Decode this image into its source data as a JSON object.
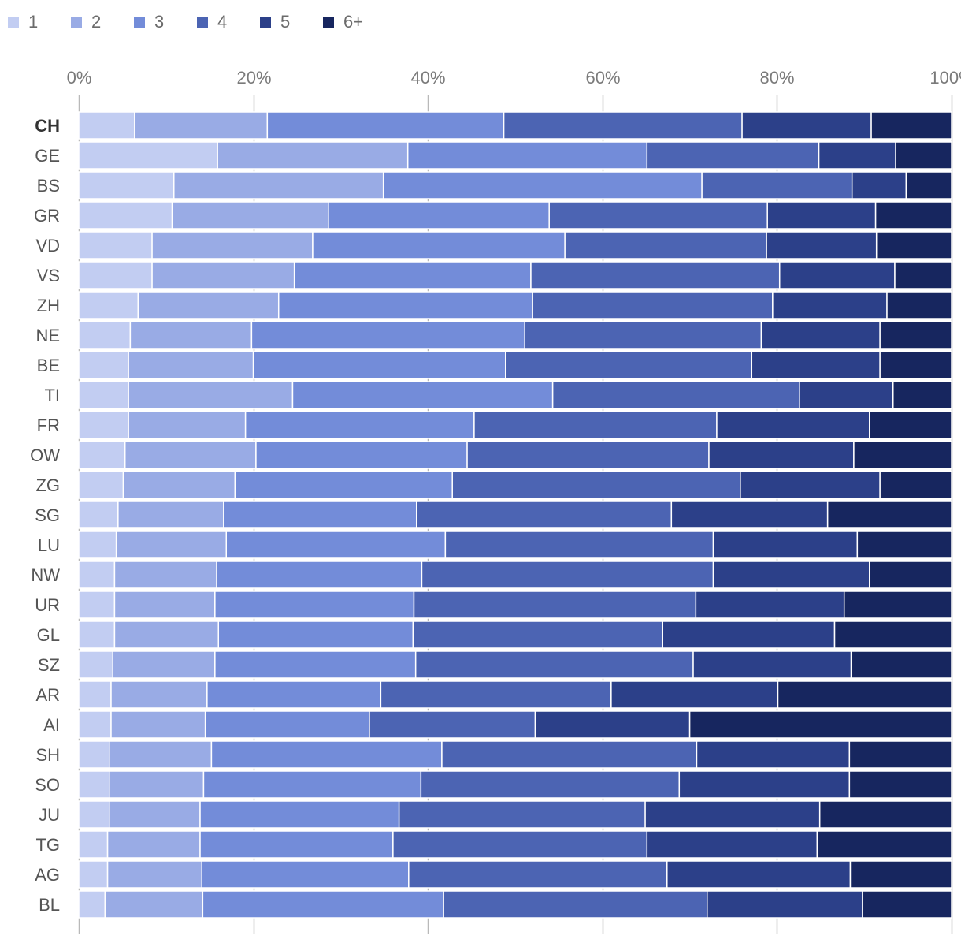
{
  "chart_data": {
    "type": "bar",
    "orientation": "horizontal",
    "stacked": true,
    "normalized_percent": true,
    "title": "",
    "xlabel": "",
    "ylabel": "",
    "xlim": [
      0,
      100
    ],
    "x_ticks": [
      "0%",
      "20%",
      "40%",
      "60%",
      "80%",
      "100%"
    ],
    "legend_position": "top-left",
    "highlight_category": "CH",
    "categories": [
      "CH",
      "GE",
      "BS",
      "GR",
      "VD",
      "VS",
      "ZH",
      "NE",
      "BE",
      "TI",
      "FR",
      "OW",
      "ZG",
      "SG",
      "LU",
      "NW",
      "UR",
      "GL",
      "SZ",
      "AR",
      "AI",
      "SH",
      "SO",
      "JU",
      "TG",
      "AG",
      "BL"
    ],
    "series": [
      {
        "name": "1",
        "color": "#c2cdf2",
        "values": [
          6.4,
          15.9,
          10.9,
          10.7,
          8.4,
          8.4,
          6.8,
          5.9,
          5.7,
          5.7,
          5.7,
          5.3,
          5.1,
          4.5,
          4.3,
          4.1,
          4.1,
          4.1,
          3.9,
          3.7,
          3.7,
          3.5,
          3.5,
          3.5,
          3.3,
          3.3,
          3.0
        ]
      },
      {
        "name": "2",
        "color": "#99abe5",
        "values": [
          15.2,
          21.8,
          24.0,
          17.9,
          18.4,
          16.3,
          16.1,
          13.9,
          14.3,
          18.8,
          13.4,
          15.0,
          12.8,
          12.1,
          12.6,
          11.7,
          11.5,
          11.9,
          11.7,
          11.0,
          10.8,
          11.7,
          10.8,
          10.4,
          10.6,
          10.8,
          11.2
        ]
      },
      {
        "name": "3",
        "color": "#738cd9",
        "values": [
          27.1,
          27.4,
          36.5,
          25.3,
          28.9,
          27.1,
          29.1,
          31.3,
          28.9,
          29.8,
          26.2,
          24.2,
          24.9,
          22.1,
          25.1,
          23.5,
          22.8,
          22.3,
          23.0,
          19.9,
          18.8,
          26.4,
          24.9,
          22.8,
          22.1,
          23.7,
          27.6
        ]
      },
      {
        "name": "4",
        "color": "#4c64b3",
        "values": [
          27.3,
          19.7,
          17.2,
          25.0,
          23.1,
          28.5,
          27.5,
          27.1,
          28.2,
          28.3,
          27.8,
          27.7,
          33.0,
          29.2,
          30.7,
          33.4,
          32.3,
          28.6,
          31.8,
          26.4,
          19.0,
          29.2,
          29.6,
          28.2,
          29.1,
          29.6,
          30.2
        ]
      },
      {
        "name": "5",
        "color": "#2c4089",
        "values": [
          14.8,
          8.8,
          6.2,
          12.4,
          12.6,
          13.2,
          13.1,
          13.6,
          14.7,
          10.7,
          17.5,
          16.6,
          16.0,
          17.9,
          16.5,
          17.9,
          17.0,
          19.7,
          18.1,
          19.1,
          17.7,
          17.5,
          19.5,
          20.0,
          19.5,
          21.0,
          17.8
        ]
      },
      {
        "name": "6+",
        "color": "#17265f",
        "values": [
          9.2,
          6.4,
          5.2,
          8.7,
          8.6,
          6.5,
          7.4,
          8.2,
          8.2,
          6.7,
          9.4,
          11.2,
          8.2,
          14.2,
          10.8,
          9.4,
          12.3,
          13.4,
          11.5,
          19.9,
          30.0,
          11.7,
          11.7,
          15.1,
          15.4,
          11.6,
          10.2
        ]
      }
    ]
  }
}
